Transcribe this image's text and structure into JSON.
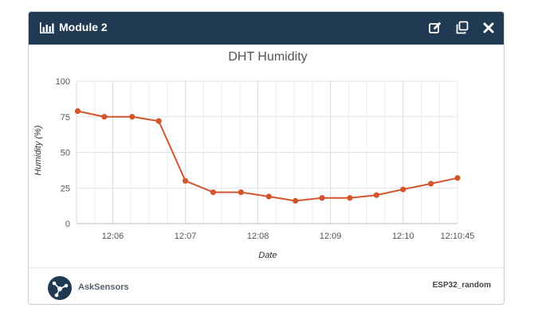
{
  "module": {
    "title": "Module 2",
    "title_icon": "bar-chart-icon",
    "actions": [
      {
        "name": "edit-icon"
      },
      {
        "name": "duplicate-icon"
      },
      {
        "name": "close-icon"
      }
    ]
  },
  "footer": {
    "brand": "AskSensors",
    "device": "ESP32_random"
  },
  "colors": {
    "header_bg": "#1f3a52",
    "series": "#d4552b"
  },
  "chart_data": {
    "type": "line",
    "title": "DHT Humidity",
    "xlabel": "Date",
    "ylabel": "Humidity (%)",
    "ylim": [
      0,
      100
    ],
    "yticks": [
      0,
      25,
      50,
      75,
      100
    ],
    "xlim": [
      "12:05:30",
      "12:10:45"
    ],
    "xticks": [
      "12:06",
      "12:07",
      "12:08",
      "12:09",
      "12:10",
      "12:10:45"
    ],
    "grid": true,
    "series": [
      {
        "points": [
          {
            "x": "12:05:31",
            "y": 79
          },
          {
            "x": "12:05:53",
            "y": 75
          },
          {
            "x": "12:06:16",
            "y": 75
          },
          {
            "x": "12:06:38",
            "y": 72
          },
          {
            "x": "12:07:00",
            "y": 30
          },
          {
            "x": "12:07:23",
            "y": 22
          },
          {
            "x": "12:07:46",
            "y": 22
          },
          {
            "x": "12:08:09",
            "y": 19
          },
          {
            "x": "12:08:31",
            "y": 16
          },
          {
            "x": "12:08:53",
            "y": 18
          },
          {
            "x": "12:09:16",
            "y": 18
          },
          {
            "x": "12:09:38",
            "y": 20
          },
          {
            "x": "12:10:00",
            "y": 24
          },
          {
            "x": "12:10:23",
            "y": 28
          },
          {
            "x": "12:10:45",
            "y": 32
          }
        ]
      }
    ]
  }
}
